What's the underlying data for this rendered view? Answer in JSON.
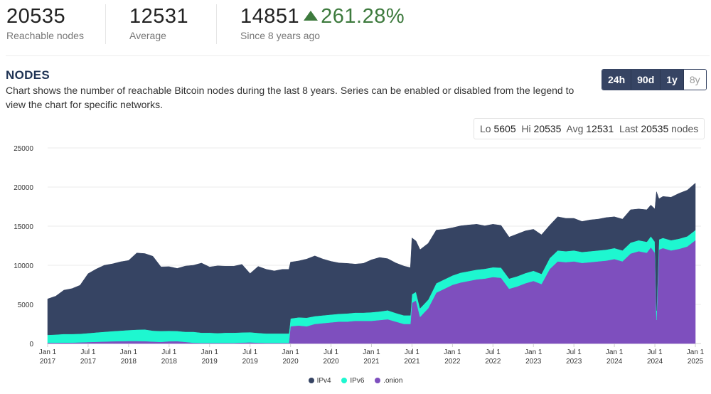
{
  "stats": {
    "reachable": {
      "value": "20535",
      "label": "Reachable nodes"
    },
    "average": {
      "value": "12531",
      "label": "Average"
    },
    "since": {
      "value": "14851",
      "change": "261.28%",
      "label": "Since 8 years ago"
    }
  },
  "section": {
    "title": "NODES",
    "description": "Chart shows the number of reachable Bitcoin nodes during the last 8 years. Series can be enabled or disabled from the legend to view the chart for specific networks."
  },
  "ranges": [
    {
      "label": "24h",
      "active": true
    },
    {
      "label": "90d",
      "active": true
    },
    {
      "label": "1y",
      "active": true
    },
    {
      "label": "8y",
      "active": false
    }
  ],
  "summary": {
    "lo_label": "Lo",
    "lo": "5605",
    "hi_label": "Hi",
    "hi": "20535",
    "avg_label": "Avg",
    "avg": "12531",
    "last_label": "Last",
    "last": "20535",
    "unit": "nodes"
  },
  "chart_data": {
    "type": "area",
    "stacked": true,
    "ylim": [
      0,
      25000
    ],
    "yticks": [
      0,
      5000,
      10000,
      15000,
      20000,
      25000
    ],
    "ytick_labels": [
      "0",
      "5000",
      "10000",
      "15000",
      "20000",
      "25000"
    ],
    "xticks": [
      {
        "t": 2017.0,
        "line1": "Jan 1",
        "line2": "2017"
      },
      {
        "t": 2017.5,
        "line1": "Jul 1",
        "line2": "2017"
      },
      {
        "t": 2018.0,
        "line1": "Jan 1",
        "line2": "2018"
      },
      {
        "t": 2018.5,
        "line1": "Jul 1",
        "line2": "2018"
      },
      {
        "t": 2019.0,
        "line1": "Jan 1",
        "line2": "2019"
      },
      {
        "t": 2019.5,
        "line1": "Jul 1",
        "line2": "2019"
      },
      {
        "t": 2020.0,
        "line1": "Jan 1",
        "line2": "2020"
      },
      {
        "t": 2020.5,
        "line1": "Jul 1",
        "line2": "2020"
      },
      {
        "t": 2021.0,
        "line1": "Jan 1",
        "line2": "2021"
      },
      {
        "t": 2021.5,
        "line1": "Jul 1",
        "line2": "2021"
      },
      {
        "t": 2022.0,
        "line1": "Jan 1",
        "line2": "2022"
      },
      {
        "t": 2022.5,
        "line1": "Jul 1",
        "line2": "2022"
      },
      {
        "t": 2023.0,
        "line1": "Jan 1",
        "line2": "2023"
      },
      {
        "t": 2023.5,
        "line1": "Jul 1",
        "line2": "2023"
      },
      {
        "t": 2024.0,
        "line1": "Jan 1",
        "line2": "2024"
      },
      {
        "t": 2024.5,
        "line1": "Jul 1",
        "line2": "2024"
      },
      {
        "t": 2025.0,
        "line1": "Jan 1",
        "line2": "2025"
      }
    ],
    "xlim": [
      2017.0,
      2025.0
    ],
    "x": [
      2017.0,
      2017.1,
      2017.2,
      2017.3,
      2017.4,
      2017.5,
      2017.6,
      2017.7,
      2017.8,
      2017.9,
      2018.0,
      2018.1,
      2018.2,
      2018.3,
      2018.4,
      2018.5,
      2018.6,
      2018.7,
      2018.8,
      2018.9,
      2019.0,
      2019.1,
      2019.2,
      2019.3,
      2019.4,
      2019.5,
      2019.6,
      2019.7,
      2019.8,
      2019.9,
      2019.98,
      2020.0,
      2020.1,
      2020.2,
      2020.3,
      2020.4,
      2020.5,
      2020.6,
      2020.7,
      2020.8,
      2020.9,
      2021.0,
      2021.1,
      2021.2,
      2021.3,
      2021.4,
      2021.48,
      2021.5,
      2021.55,
      2021.6,
      2021.7,
      2021.8,
      2021.9,
      2022.0,
      2022.1,
      2022.2,
      2022.3,
      2022.4,
      2022.5,
      2022.6,
      2022.7,
      2022.8,
      2022.9,
      2023.0,
      2023.1,
      2023.2,
      2023.3,
      2023.4,
      2023.5,
      2023.6,
      2023.7,
      2023.8,
      2023.9,
      2024.0,
      2024.1,
      2024.2,
      2024.3,
      2024.4,
      2024.45,
      2024.5,
      2024.52,
      2024.55,
      2024.6,
      2024.7,
      2024.8,
      2024.9,
      2025.0
    ],
    "series": [
      {
        "name": ".onion",
        "color": "#7e4fbe",
        "values": [
          100,
          100,
          120,
          120,
          150,
          180,
          220,
          250,
          280,
          300,
          320,
          320,
          300,
          250,
          200,
          280,
          300,
          200,
          100,
          80,
          80,
          80,
          80,
          80,
          120,
          150,
          100,
          80,
          80,
          80,
          80,
          2200,
          2300,
          2200,
          2500,
          2600,
          2700,
          2800,
          2800,
          2900,
          2900,
          2900,
          3000,
          3100,
          2800,
          2500,
          2500,
          5200,
          5500,
          3400,
          4500,
          6500,
          7000,
          7500,
          7800,
          8000,
          8200,
          8300,
          8500,
          8400,
          7000,
          7300,
          7700,
          8000,
          7600,
          9500,
          10500,
          10400,
          10500,
          10300,
          10400,
          10500,
          10600,
          10800,
          10500,
          11500,
          11800,
          11600,
          12300,
          11600,
          3000,
          12000,
          12200,
          11900,
          12100,
          12400,
          13200
        ]
      },
      {
        "name": "IPv6",
        "color": "#1ef7d0",
        "values": [
          1000,
          1050,
          1100,
          1100,
          1100,
          1150,
          1200,
          1250,
          1300,
          1350,
          1400,
          1450,
          1500,
          1400,
          1400,
          1350,
          1300,
          1300,
          1400,
          1300,
          1300,
          1250,
          1300,
          1300,
          1300,
          1300,
          1250,
          1200,
          1200,
          1200,
          1200,
          1000,
          1050,
          1100,
          1000,
          1000,
          1000,
          1000,
          1050,
          1050,
          1050,
          1100,
          1100,
          1150,
          1100,
          1100,
          1100,
          1100,
          1100,
          1100,
          1100,
          1200,
          1200,
          1200,
          1250,
          1250,
          1250,
          1250,
          1250,
          1300,
          1300,
          1300,
          1300,
          1300,
          1300,
          1400,
          1400,
          1400,
          1400,
          1400,
          1400,
          1400,
          1400,
          1400,
          1400,
          1400,
          1400,
          1400,
          1400,
          1400,
          1200,
          1300,
          1300,
          1300,
          1300,
          1300,
          1300
        ]
      },
      {
        "name": "IPv4",
        "color": "#364463",
        "values": [
          4600,
          4900,
          5600,
          5800,
          6200,
          7600,
          8100,
          8500,
          8600,
          8800,
          8900,
          9800,
          9700,
          9500,
          8200,
          8200,
          8000,
          8400,
          8500,
          8900,
          8400,
          8600,
          8500,
          8500,
          8700,
          7500,
          8500,
          8200,
          8000,
          8200,
          8200,
          7200,
          7200,
          7500,
          7700,
          7200,
          6800,
          6500,
          6400,
          6200,
          6300,
          6700,
          6900,
          6600,
          6400,
          6300,
          6100,
          7200,
          6500,
          7500,
          7200,
          6800,
          6400,
          6100,
          6000,
          5900,
          5800,
          5500,
          5500,
          5400,
          5300,
          5400,
          5400,
          5300,
          5000,
          4200,
          4300,
          4200,
          4100,
          3900,
          4000,
          4000,
          4100,
          4000,
          4000,
          4200,
          4000,
          4100,
          4000,
          4200,
          15200,
          5200,
          5300,
          5500,
          5800,
          5900,
          6000
        ]
      }
    ]
  },
  "legend": [
    {
      "label": "IPv4",
      "color": "#364463"
    },
    {
      "label": "IPv6",
      "color": "#1ef7d0"
    },
    {
      "label": ".onion",
      "color": "#7e4fbe"
    }
  ]
}
